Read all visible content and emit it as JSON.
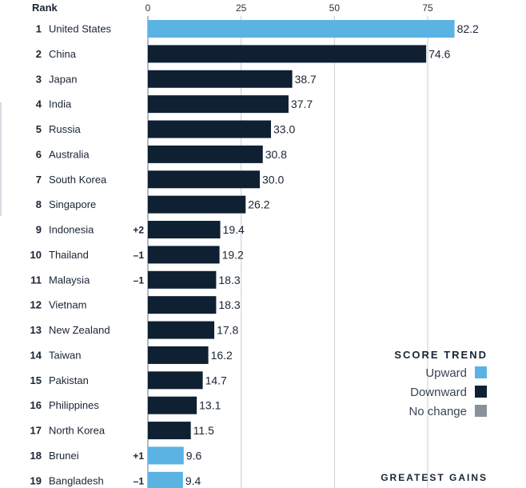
{
  "colors": {
    "upward": "#5bb3e4",
    "downward": "#0f2033",
    "no_change": "#8a9199",
    "gridline": "#c9ced4"
  },
  "chart_data": {
    "type": "bar",
    "orientation": "horizontal",
    "rank_header": "Rank",
    "x_ticks": [
      0,
      25,
      50,
      75
    ],
    "xlim": [
      0,
      85
    ],
    "rows": [
      {
        "rank": "1",
        "country": "United States",
        "change": "",
        "value": 82.2,
        "value_label": "82.2",
        "trend": "upward"
      },
      {
        "rank": "2",
        "country": "China",
        "change": "",
        "value": 74.6,
        "value_label": "74.6",
        "trend": "downward"
      },
      {
        "rank": "3",
        "country": "Japan",
        "change": "",
        "value": 38.7,
        "value_label": "38.7",
        "trend": "downward"
      },
      {
        "rank": "4",
        "country": "India",
        "change": "",
        "value": 37.7,
        "value_label": "37.7",
        "trend": "downward"
      },
      {
        "rank": "5",
        "country": "Russia",
        "change": "",
        "value": 33.0,
        "value_label": "33.0",
        "trend": "downward"
      },
      {
        "rank": "6",
        "country": "Australia",
        "change": "",
        "value": 30.8,
        "value_label": "30.8",
        "trend": "downward"
      },
      {
        "rank": "7",
        "country": "South Korea",
        "change": "",
        "value": 30.0,
        "value_label": "30.0",
        "trend": "downward"
      },
      {
        "rank": "8",
        "country": "Singapore",
        "change": "",
        "value": 26.2,
        "value_label": "26.2",
        "trend": "downward"
      },
      {
        "rank": "9",
        "country": "Indonesia",
        "change": "+2",
        "value": 19.4,
        "value_label": "19.4",
        "trend": "downward"
      },
      {
        "rank": "10",
        "country": "Thailand",
        "change": "–1",
        "value": 19.2,
        "value_label": "19.2",
        "trend": "downward"
      },
      {
        "rank": "11",
        "country": "Malaysia",
        "change": "–1",
        "value": 18.3,
        "value_label": "18.3",
        "trend": "downward"
      },
      {
        "rank": "12",
        "country": "Vietnam",
        "change": "",
        "value": 18.3,
        "value_label": "18.3",
        "trend": "downward"
      },
      {
        "rank": "13",
        "country": "New Zealand",
        "change": "",
        "value": 17.8,
        "value_label": "17.8",
        "trend": "downward"
      },
      {
        "rank": "14",
        "country": "Taiwan",
        "change": "",
        "value": 16.2,
        "value_label": "16.2",
        "trend": "downward"
      },
      {
        "rank": "15",
        "country": "Pakistan",
        "change": "",
        "value": 14.7,
        "value_label": "14.7",
        "trend": "downward"
      },
      {
        "rank": "16",
        "country": "Philippines",
        "change": "",
        "value": 13.1,
        "value_label": "13.1",
        "trend": "downward"
      },
      {
        "rank": "17",
        "country": "North Korea",
        "change": "",
        "value": 11.5,
        "value_label": "11.5",
        "trend": "downward"
      },
      {
        "rank": "18",
        "country": "Brunei",
        "change": "+1",
        "value": 9.6,
        "value_label": "9.6",
        "trend": "upward"
      },
      {
        "rank": "19",
        "country": "Bangladesh",
        "change": "–1",
        "value": 9.4,
        "value_label": "9.4",
        "trend": "upward"
      }
    ],
    "legend": {
      "title": "SCORE TREND",
      "items": [
        {
          "label": "Upward",
          "trend": "upward"
        },
        {
          "label": "Downward",
          "trend": "downward"
        },
        {
          "label": "No change",
          "trend": "no_change"
        }
      ]
    },
    "gains_title": "GREATEST GAINS"
  }
}
